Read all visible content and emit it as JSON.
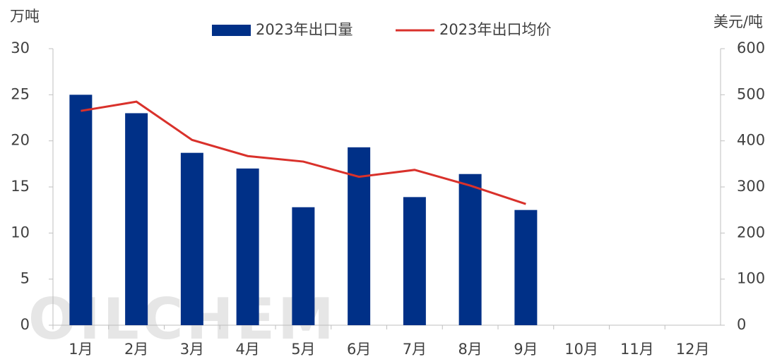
{
  "chart_data": {
    "type": "bar",
    "legend": "top",
    "watermark": "OILCHEM",
    "y_label": "万吨",
    "y2_label": "美元/吨",
    "categories": [
      "1月",
      "2月",
      "3月",
      "4月",
      "5月",
      "6月",
      "7月",
      "8月",
      "9月",
      "10月",
      "11月",
      "12月"
    ],
    "series": [
      {
        "name": "2023年出口量",
        "type": "bar",
        "color": "#003087",
        "values": [
          25,
          23,
          18.7,
          17,
          12.8,
          19.3,
          13.9,
          16.4,
          12.5,
          null,
          null,
          null
        ]
      },
      {
        "name": "2023年出口均价",
        "type": "line",
        "axis": "y2",
        "color": "#d9312b",
        "values": [
          465,
          485,
          402,
          367,
          355,
          322,
          337,
          303,
          263,
          null,
          null,
          null
        ]
      }
    ],
    "ylim": [
      0,
      30
    ],
    "yticks": [
      0,
      5,
      10,
      15,
      20,
      25,
      30
    ],
    "y2lim": [
      0,
      600
    ],
    "y2ticks": [
      0,
      100,
      200,
      300,
      400,
      500,
      600
    ]
  }
}
